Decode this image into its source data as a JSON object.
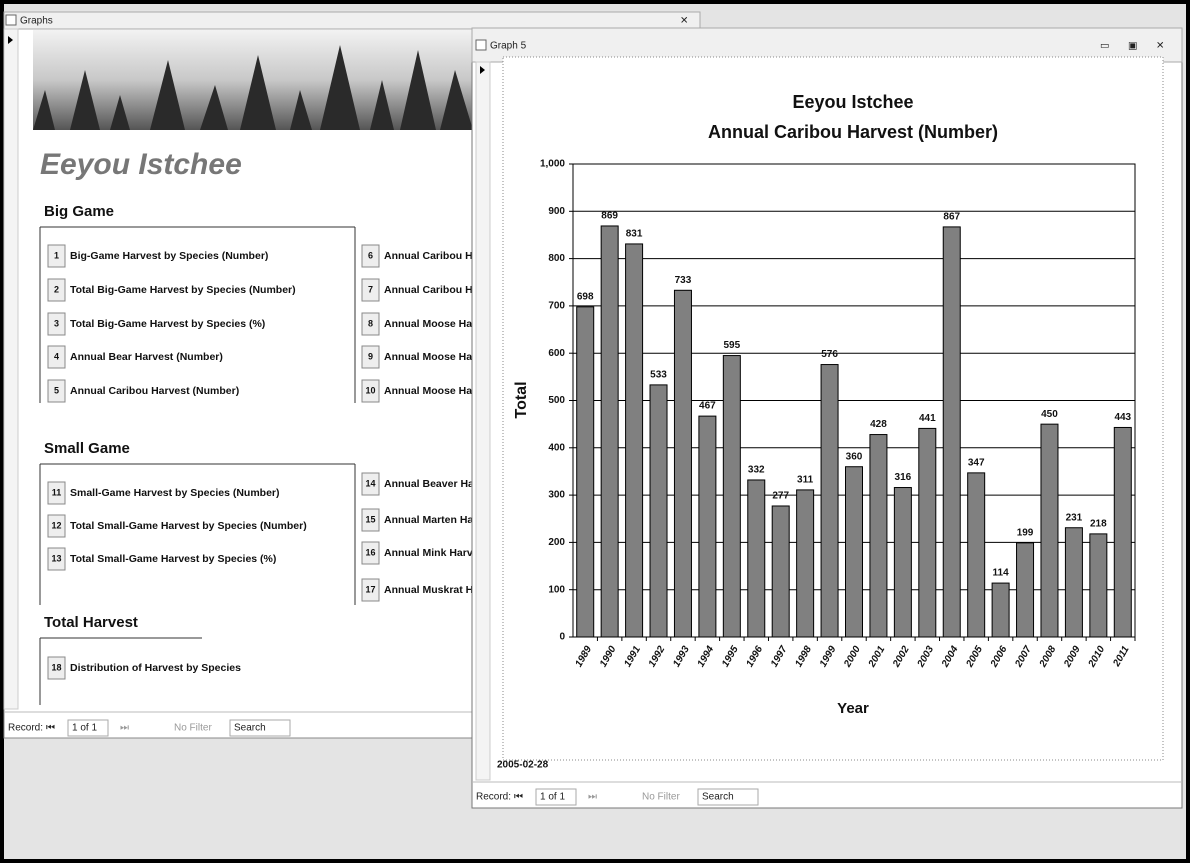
{
  "left_window": {
    "title": "Graphs",
    "heading": "Eeyou Istchee",
    "sections": [
      {
        "title": "Big Game",
        "column_1": [
          {
            "number": "1",
            "label": "Big-Game Harvest by Species (Number)"
          },
          {
            "number": "2",
            "label": "Total Big-Game Harvest by Species (Number)"
          },
          {
            "number": "3",
            "label": "Total Big-Game Harvest by Species (%)"
          },
          {
            "number": "4",
            "label": "Annual Bear Harvest (Number)"
          },
          {
            "number": "5",
            "label": "Annual Caribou Harvest (Number)"
          }
        ],
        "column_2": [
          {
            "number": "6",
            "label": "Annual Caribou Ha"
          },
          {
            "number": "7",
            "label": "Annual Caribou Ha"
          },
          {
            "number": "8",
            "label": "Annual Moose Har"
          },
          {
            "number": "9",
            "label": "Annual Moose Har"
          },
          {
            "number": "10",
            "label": "Annual Moose Har"
          }
        ]
      },
      {
        "title": "Small Game",
        "column_1": [
          {
            "number": "11",
            "label": "Small-Game Harvest by Species (Number)"
          },
          {
            "number": "12",
            "label": "Total Small-Game Harvest by Species (Number)"
          },
          {
            "number": "13",
            "label": "Total Small-Game Harvest by Species (%)"
          }
        ],
        "column_2": [
          {
            "number": "14",
            "label": "Annual Beaver Ha"
          },
          {
            "number": "15",
            "label": "Annual Marten Ha"
          },
          {
            "number": "16",
            "label": "Annual Mink Harve"
          },
          {
            "number": "17",
            "label": "Annual Muskrat Ha"
          }
        ]
      },
      {
        "title": "Total Harvest",
        "column_1": [
          {
            "number": "18",
            "label": "Distribution of Harvest by Species"
          }
        ],
        "column_2": []
      }
    ],
    "status": {
      "record_label": "Record:",
      "record": "1 of 1",
      "filter": "No Filter",
      "search": "Search"
    }
  },
  "right_window": {
    "title": "Graph 5",
    "date": "2005-02-28",
    "status": {
      "record_label": "Record:",
      "record": "1 of 1",
      "filter": "No Filter",
      "search": "Search"
    }
  },
  "chart_data": {
    "type": "bar",
    "title": "Eeyou Istchee",
    "subtitle": "Annual Caribou Harvest (Number)",
    "x_label": "Year",
    "y_label": "Total",
    "categories": [
      "1989",
      "1990",
      "1991",
      "1992",
      "1993",
      "1994",
      "1995",
      "1996",
      "1997",
      "1998",
      "1999",
      "2000",
      "2001",
      "2002",
      "2003",
      "2004",
      "2005",
      "2006",
      "2007",
      "2008",
      "2009",
      "2010",
      "2011"
    ],
    "values": [
      698,
      869,
      831,
      533,
      733,
      467,
      595,
      332,
      277,
      311,
      576,
      360,
      428,
      316,
      441,
      867,
      347,
      114,
      199,
      450,
      231,
      218,
      443
    ],
    "color": "#808080",
    "data_labels": true,
    "ylim": [
      0,
      1000
    ],
    "yticks": [
      0,
      100,
      200,
      300,
      400,
      500,
      600,
      700,
      800,
      900,
      {
        "value": 1000,
        "label": "1,000"
      }
    ],
    "grid": true
  }
}
